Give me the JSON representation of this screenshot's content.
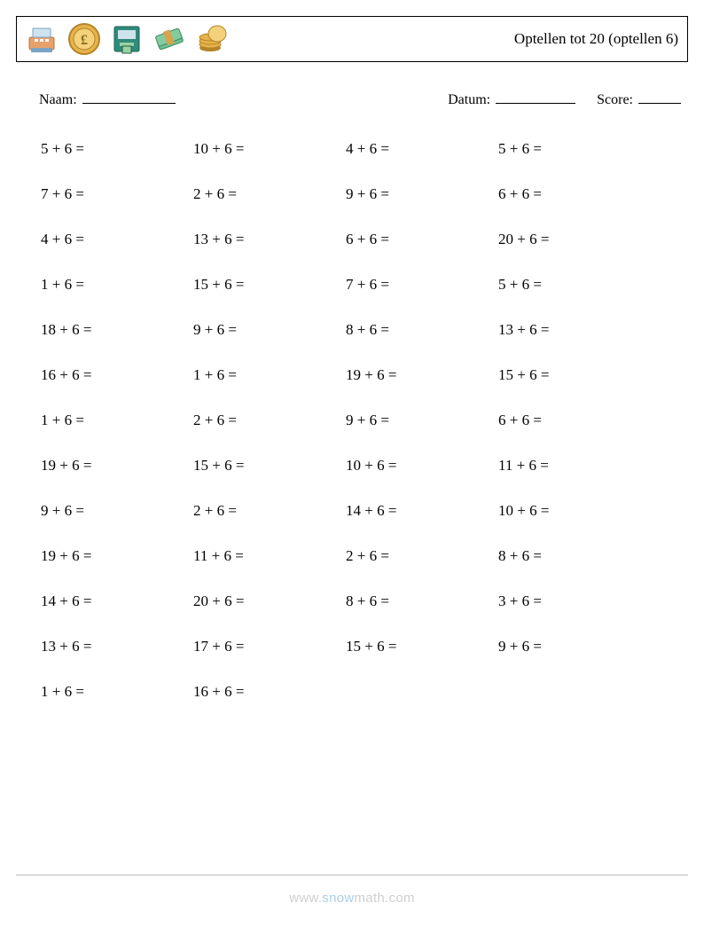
{
  "header": {
    "title": "Optellen tot 20 (optellen 6)"
  },
  "meta": {
    "name_label": "Naam:",
    "date_label": "Datum:",
    "score_label": "Score:"
  },
  "layout": {
    "columns": 4,
    "rows": 13,
    "font_size_pt": 13,
    "text_color": "#000000",
    "background_color": "#ffffff",
    "border_color": "#000000"
  },
  "problems": [
    "5 + 6 =",
    "10 + 6 =",
    "4 + 6 =",
    "5 + 6 =",
    "7 + 6 =",
    "2 + 6 =",
    "9 + 6 =",
    "6 + 6 =",
    "4 + 6 =",
    "13 + 6 =",
    "6 + 6 =",
    "20 + 6 =",
    "1 + 6 =",
    "15 + 6 =",
    "7 + 6 =",
    "5 + 6 =",
    "18 + 6 =",
    "9 + 6 =",
    "8 + 6 =",
    "13 + 6 =",
    "16 + 6 =",
    "1 + 6 =",
    "19 + 6 =",
    "15 + 6 =",
    "1 + 6 =",
    "2 + 6 =",
    "9 + 6 =",
    "6 + 6 =",
    "19 + 6 =",
    "15 + 6 =",
    "10 + 6 =",
    "11 + 6 =",
    "9 + 6 =",
    "2 + 6 =",
    "14 + 6 =",
    "10 + 6 =",
    "19 + 6 =",
    "11 + 6 =",
    "2 + 6 =",
    "8 + 6 =",
    "14 + 6 =",
    "20 + 6 =",
    "8 + 6 =",
    "3 + 6 =",
    "13 + 6 =",
    "17 + 6 =",
    "15 + 6 =",
    "9 + 6 =",
    "1 + 6 =",
    "16 + 6 ="
  ],
  "footer": {
    "brand_plain": "www.",
    "brand_accent": "snow",
    "brand_tail": "math.com"
  },
  "icons": [
    {
      "name": "cash-register-icon",
      "colors": {
        "body": "#e8a16b",
        "top": "#cfe3ef",
        "accent": "#7aa3c4"
      }
    },
    {
      "name": "pound-coin-icon",
      "colors": {
        "outer": "#e6b24a",
        "inner": "#f3d27b",
        "text": "#8b6a1f"
      }
    },
    {
      "name": "atm-machine-icon",
      "colors": {
        "body": "#2e8b7a",
        "screen": "#cfe3ef",
        "slot": "#9ad19f"
      }
    },
    {
      "name": "cash-stack-icon",
      "colors": {
        "bill": "#6fbf8f",
        "band": "#d9a34a"
      }
    },
    {
      "name": "coin-stack-icon",
      "colors": {
        "coin": "#e6b24a",
        "edge": "#b4842a"
      }
    }
  ]
}
